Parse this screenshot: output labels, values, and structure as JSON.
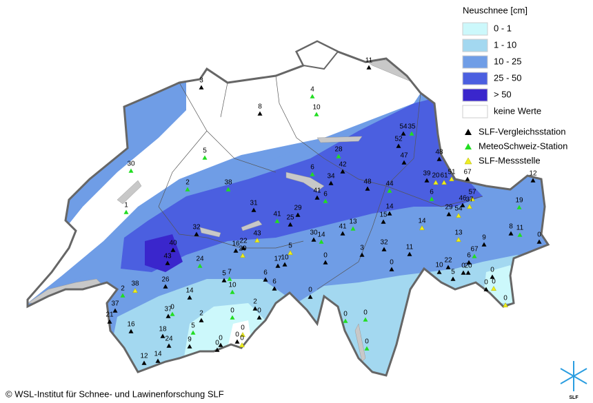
{
  "legend": {
    "title": "Neuschnee [cm]",
    "classes": [
      {
        "label": "0 - 1",
        "color": "#ccf8fb"
      },
      {
        "label": "1 - 10",
        "color": "#a3d8f0"
      },
      {
        "label": "10 - 25",
        "color": "#6f9de6"
      },
      {
        "label": "25 - 50",
        "color": "#4b5fe0"
      },
      {
        "label": "> 50",
        "color": "#3a26cc"
      },
      {
        "label": "keine Werte",
        "color": "#ffffff"
      }
    ],
    "stations": [
      {
        "label": "SLF-Vergleichsstation",
        "color": "#000000"
      },
      {
        "label": "MeteoSchweiz-Station",
        "color": "#22dd22"
      },
      {
        "label": "SLF-Messstelle",
        "color": "#eeee22"
      }
    ]
  },
  "stations": [
    11,
    3,
    4,
    8,
    10,
    54,
    35,
    52,
    48,
    28,
    47,
    5,
    30,
    6,
    42,
    12,
    39,
    20,
    61,
    51,
    67,
    2,
    38,
    34,
    48,
    44,
    6,
    57,
    41,
    6,
    46,
    37,
    19,
    31,
    29,
    54,
    1,
    29,
    25,
    41,
    14,
    15,
    14,
    13,
    41,
    32,
    30,
    14,
    8,
    11,
    13,
    9,
    0,
    40,
    16,
    22,
    29,
    43,
    5,
    32,
    3,
    11,
    67,
    6,
    43,
    24,
    17,
    10,
    0,
    0,
    10,
    22,
    20,
    0,
    5,
    0,
    5,
    7,
    6,
    10,
    26,
    6,
    38,
    0,
    0,
    2,
    14,
    0,
    0,
    37,
    0,
    37,
    2,
    0,
    21,
    2,
    0,
    0,
    0,
    16,
    5,
    0,
    0,
    0,
    18,
    24,
    9,
    0,
    0,
    0,
    12,
    14
  ],
  "copyright": "© WSL-Institut für Schnee- und Lawinenforschung SLF",
  "logo": "SLF"
}
